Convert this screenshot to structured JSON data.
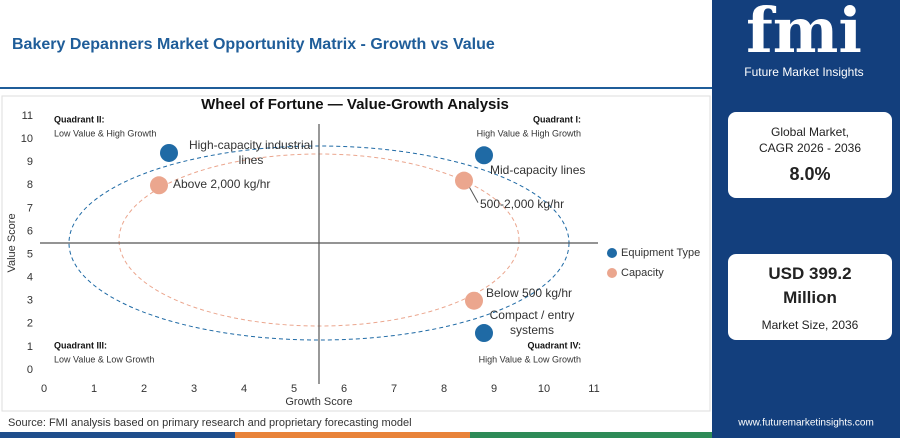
{
  "header": {
    "title": "Bakery Depanners Market Opportunity Matrix - Growth vs Value"
  },
  "chart_data": {
    "type": "scatter",
    "title": "Wheel of Fortune — Value-Growth Analysis",
    "x_label": "Growth Score",
    "y_label": "Value Score",
    "xlim": [
      0,
      11
    ],
    "ylim": [
      0,
      11
    ],
    "xticks": [
      0,
      1,
      2,
      3,
      4,
      5,
      6,
      7,
      8,
      9,
      10,
      11
    ],
    "yticks": [
      0,
      1,
      2,
      3,
      4,
      5,
      6,
      7,
      8,
      9,
      10,
      11
    ],
    "grid": false,
    "legend": "right",
    "series": [
      {
        "name": "Equipment Type",
        "color": "#1f6aa5",
        "x": [
          2.5,
          8.8,
          8.8
        ],
        "values": [
          9.4,
          9.3,
          1.6
        ],
        "labels": [
          "High-capacity industrial lines",
          "Mid-capacity lines",
          "Compact / entry systems"
        ]
      },
      {
        "name": "Capacity",
        "color": "#eba68e",
        "x": [
          2.3,
          8.4,
          8.6
        ],
        "values": [
          8.0,
          8.2,
          3.0
        ],
        "labels": [
          "Above 2,000 kg/hr",
          "500-2,000 kg/hr",
          "Below 500 kg/hr"
        ]
      }
    ],
    "quadrants": [
      {
        "title": "Quadrant II:",
        "text": "Low Value & High Growth"
      },
      {
        "title": "Quadrant I:",
        "text": "High Value & High Growth"
      },
      {
        "title": "Quadrant III:",
        "text": "Low Value & Low Growth"
      },
      {
        "title": "Quadrant IV:",
        "text": "High Value & Low Growth"
      }
    ]
  },
  "panel": {
    "logo": "fmi",
    "brand": "Future Market Insights",
    "card1": {
      "label": "Global Market, CAGR 2026 - 2036",
      "value": "8.0%"
    },
    "card2": {
      "value": "USD 399.2 Million",
      "label": "Market Size, 2036"
    },
    "url": "www.futuremarketinsights.com"
  },
  "footer": {
    "source": "Source: FMI analysis based on primary research and proprietary forecasting model"
  }
}
